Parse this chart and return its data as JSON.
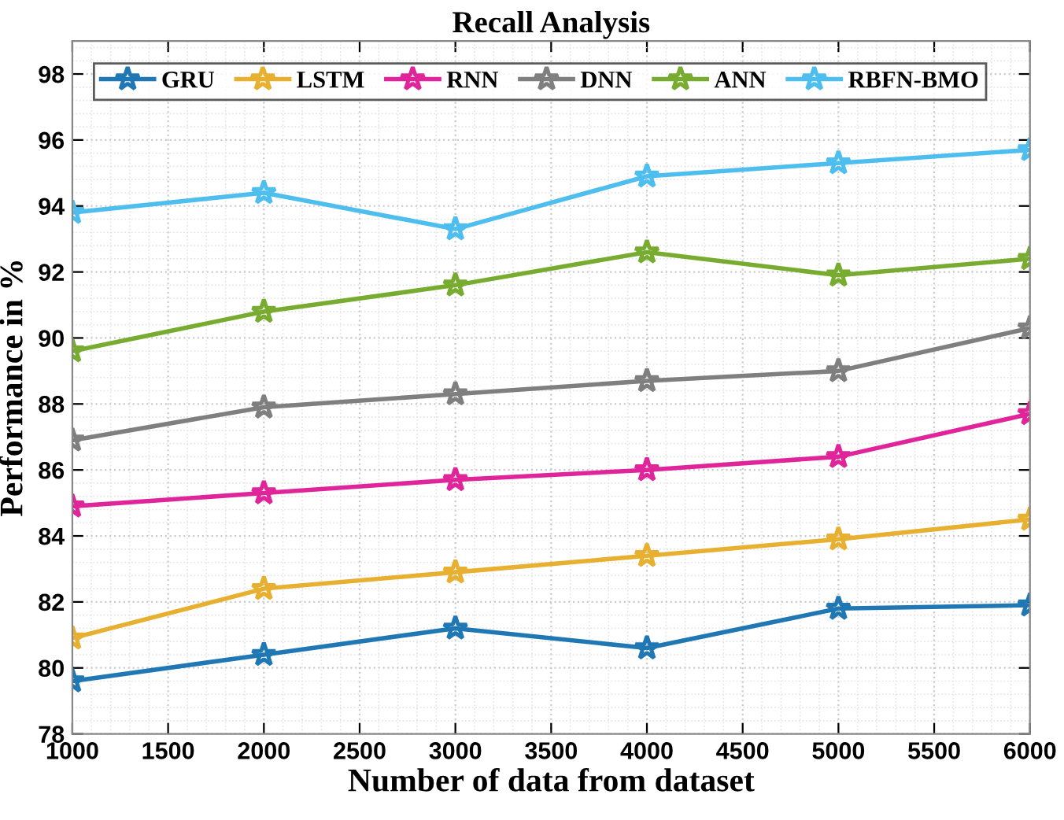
{
  "chart_data": {
    "type": "line",
    "title": "Recall Analysis",
    "xlabel": "Number of data from dataset",
    "ylabel": "Performance in %",
    "x": [
      1000,
      2000,
      3000,
      4000,
      5000,
      6000
    ],
    "series": [
      {
        "name": "GRU",
        "color": "#1f77b4",
        "values": [
          79.6,
          80.4,
          81.2,
          80.6,
          81.8,
          81.9
        ]
      },
      {
        "name": "LSTM",
        "color": "#e8b030",
        "values": [
          80.9,
          82.4,
          82.9,
          83.4,
          83.9,
          84.5
        ]
      },
      {
        "name": "RNN",
        "color": "#e0259a",
        "values": [
          84.9,
          85.3,
          85.7,
          86.0,
          86.4,
          87.7
        ]
      },
      {
        "name": "DNN",
        "color": "#7f7f7f",
        "values": [
          86.9,
          87.9,
          88.3,
          88.7,
          89.0,
          90.3
        ]
      },
      {
        "name": "ANN",
        "color": "#77ac30",
        "values": [
          89.6,
          90.8,
          91.6,
          92.6,
          91.9,
          92.4
        ]
      },
      {
        "name": "RBFN-BMO",
        "color": "#4dbeee",
        "values": [
          93.8,
          94.4,
          93.3,
          94.9,
          95.3,
          95.7
        ]
      }
    ],
    "xlim": [
      1000,
      6000
    ],
    "xticks": [
      1000,
      1500,
      2000,
      2500,
      3000,
      3500,
      4000,
      4500,
      5000,
      5500,
      6000
    ],
    "ylim": [
      78,
      99
    ],
    "yticks": [
      78,
      80,
      82,
      84,
      86,
      88,
      90,
      92,
      94,
      96,
      98
    ],
    "grid": true,
    "legend": "top",
    "marker": "star",
    "line_style": "solid"
  }
}
